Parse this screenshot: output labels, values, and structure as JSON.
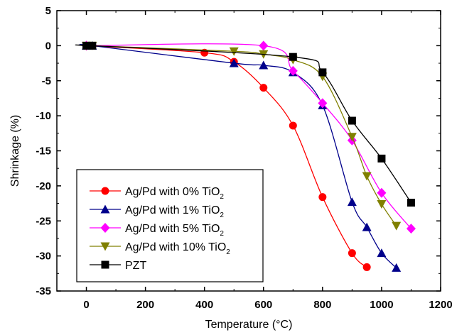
{
  "chart_data": {
    "type": "line",
    "title": "",
    "xlabel": "Temperature (°C)",
    "ylabel": "Shrinkage (%)",
    "xlim": [
      -100,
      1200
    ],
    "ylim": [
      -35,
      5
    ],
    "xticks": [
      0,
      200,
      400,
      600,
      800,
      1000,
      1200
    ],
    "yticks": [
      5,
      0,
      -5,
      -10,
      -15,
      -20,
      -25,
      -30,
      -35
    ],
    "grid": false,
    "legend_position": "bottom-left",
    "series": [
      {
        "name": "Ag/Pd with 0% TiO",
        "name_sub": "2",
        "color": "#ff0000",
        "marker": "circle",
        "x": [
          0,
          400,
          500,
          600,
          700,
          800,
          900,
          950
        ],
        "y": [
          0,
          -1.0,
          -2.3,
          -6.0,
          -11.4,
          -21.6,
          -29.6,
          -31.6
        ]
      },
      {
        "name": "Ag/Pd with 1% TiO",
        "name_sub": "2",
        "color": "#00008b",
        "marker": "triangle-up",
        "x": [
          0,
          20,
          500,
          600,
          700,
          800,
          900,
          950,
          1000,
          1050
        ],
        "y": [
          0,
          0,
          -2.5,
          -2.8,
          -3.8,
          -8.5,
          -22.3,
          -25.9,
          -29.6,
          -31.7
        ]
      },
      {
        "name": "Ag/Pd with 5% TiO",
        "name_sub": "2",
        "color": "#ff00ff",
        "marker": "diamond",
        "x": [
          0,
          600,
          700,
          800,
          900,
          1000,
          1100
        ],
        "y": [
          0,
          0,
          -3.6,
          -8.2,
          -13.5,
          -21.0,
          -26.1
        ]
      },
      {
        "name": "Ag/Pd with 10%  TiO",
        "name_sub": "2",
        "color": "#808000",
        "marker": "triangle-down",
        "x": [
          0,
          20,
          500,
          600,
          700,
          800,
          900,
          950,
          1000,
          1050
        ],
        "y": [
          0,
          0,
          -0.8,
          -1.2,
          -2.0,
          -4.4,
          -13.0,
          -18.6,
          -22.6,
          -25.7
        ]
      },
      {
        "name": "PZT",
        "name_sub": "",
        "color": "#000000",
        "marker": "square",
        "x": [
          0,
          20,
          700,
          800,
          900,
          1000,
          1100
        ],
        "y": [
          0,
          0,
          -1.6,
          -3.8,
          -10.7,
          -16.1,
          -22.4
        ]
      }
    ]
  }
}
